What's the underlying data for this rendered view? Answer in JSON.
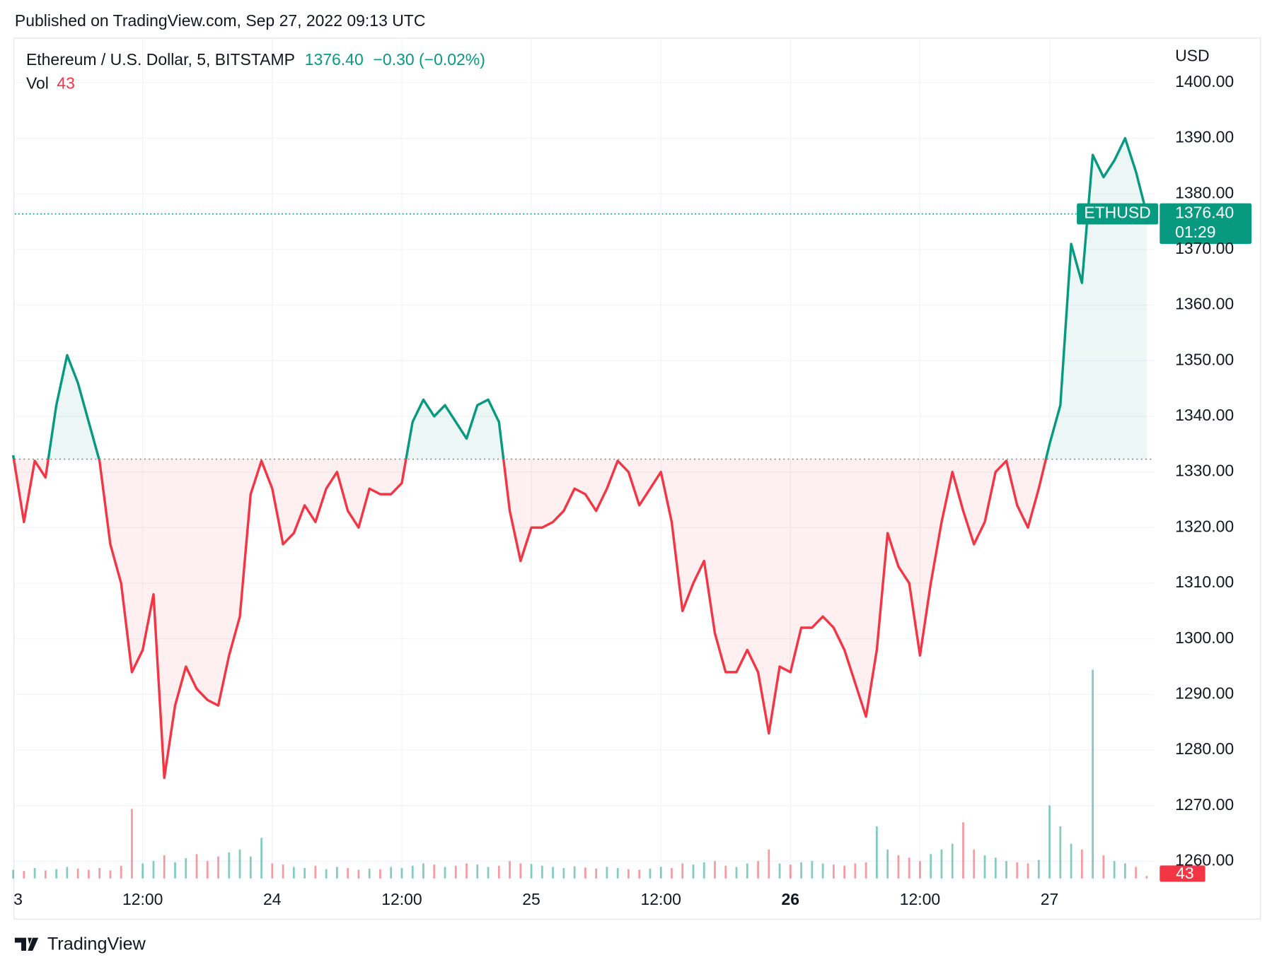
{
  "header": {
    "published": "Published on TradingView.com, Sep 27, 2022 09:13 UTC"
  },
  "chart_data": {
    "type": "line",
    "symbol": "Ethereum / U.S. Dollar, 5, BITSTAMP",
    "last": "1376.40",
    "change": "−0.30 (−0.02%)",
    "currency": "USD",
    "last_price": 1376.4,
    "last_price_label": "1376.40",
    "countdown": "01:29",
    "baseline": 1332.3,
    "categories": [
      "3",
      null,
      null,
      null,
      null,
      null,
      null,
      null,
      null,
      null,
      null,
      null,
      "12:00",
      null,
      null,
      null,
      null,
      null,
      null,
      null,
      null,
      null,
      null,
      null,
      "24",
      null,
      null,
      null,
      null,
      null,
      null,
      null,
      null,
      null,
      null,
      null,
      "12:00",
      null,
      null,
      null,
      null,
      null,
      null,
      null,
      null,
      null,
      null,
      null,
      "25",
      null,
      null,
      null,
      null,
      null,
      null,
      null,
      null,
      null,
      null,
      null,
      "12:00",
      null,
      null,
      null,
      null,
      null,
      null,
      null,
      null,
      null,
      null,
      null,
      "26",
      null,
      null,
      null,
      null,
      null,
      null,
      null,
      null,
      null,
      null,
      null,
      "12:00",
      null,
      null,
      null,
      null,
      null,
      null,
      null,
      null,
      null,
      null,
      null,
      "27",
      null,
      null,
      null,
      null,
      null,
      null,
      null,
      null,
      null
    ],
    "bold_category": "26",
    "series": [
      {
        "name": "ETHUSD",
        "color_up": "#089981",
        "color_down": "#f23645",
        "values": [
          1333,
          1321,
          1332,
          1329,
          1342,
          1351,
          1346,
          1339,
          1332,
          1317,
          1310,
          1294,
          1298,
          1308,
          1275,
          1288,
          1295,
          1291,
          1289,
          1288,
          1297,
          1304,
          1326,
          1332,
          1327,
          1317,
          1319,
          1324,
          1321,
          1327,
          1330,
          1323,
          1320,
          1327,
          1326,
          1326,
          1328,
          1339,
          1343,
          1340,
          1342,
          1339,
          1336,
          1342,
          1343,
          1339,
          1323,
          1314,
          1320,
          1320,
          1321,
          1323,
          1327,
          1326,
          1323,
          1327,
          1332,
          1330,
          1324,
          1327,
          1330,
          1321,
          1305,
          1310,
          1314,
          1301,
          1294,
          1294,
          1298,
          1294,
          1283,
          1295,
          1294,
          1302,
          1302,
          1304,
          1302,
          1298,
          1292,
          1286,
          1298,
          1319,
          1313,
          1310,
          1297,
          1310,
          1321,
          1330,
          1323,
          1317,
          1321,
          1330,
          1332,
          1324,
          1320,
          1327,
          1335,
          1342,
          1371,
          1364,
          1387,
          1383,
          1386,
          1390,
          1384,
          1376.4
        ]
      },
      {
        "name": "Vol",
        "values": [
          150,
          130,
          180,
          140,
          160,
          200,
          170,
          150,
          180,
          140,
          220,
          1200,
          260,
          300,
          400,
          280,
          350,
          420,
          300,
          380,
          450,
          500,
          380,
          700,
          260,
          240,
          200,
          180,
          220,
          160,
          200,
          180,
          150,
          170,
          160,
          200,
          180,
          220,
          260,
          240,
          200,
          220,
          260,
          240,
          200,
          220,
          300,
          260,
          250,
          220,
          200,
          180,
          210,
          190,
          170,
          200,
          180,
          160,
          150,
          170,
          200,
          180,
          260,
          240,
          280,
          300,
          220,
          200,
          260,
          300,
          500,
          260,
          240,
          280,
          300,
          260,
          240,
          220,
          260,
          280,
          900,
          500,
          400,
          360,
          300,
          420,
          500,
          600,
          970,
          500,
          400,
          360,
          300,
          280,
          260,
          320,
          1260,
          900,
          600,
          500,
          3600,
          400,
          300,
          260,
          200,
          43
        ]
      }
    ],
    "ylim": [
      1256.9,
      1408.0
    ],
    "yticks": [
      {
        "value": 1260,
        "label": "1260.00"
      },
      {
        "value": 1270,
        "label": "1270.00"
      },
      {
        "value": 1280,
        "label": "1280.00"
      },
      {
        "value": 1290,
        "label": "1290.00"
      },
      {
        "value": 1300,
        "label": "1300.00"
      },
      {
        "value": 1310,
        "label": "1310.00"
      },
      {
        "value": 1320,
        "label": "1320.00"
      },
      {
        "value": 1330,
        "label": "1330.00"
      },
      {
        "value": 1340,
        "label": "1340.00"
      },
      {
        "value": 1350,
        "label": "1350.00"
      },
      {
        "value": 1360,
        "label": "1360.00"
      },
      {
        "value": 1370,
        "label": "1370.00"
      },
      {
        "value": 1380,
        "label": "1380.00"
      },
      {
        "value": 1390,
        "label": "1390.00"
      },
      {
        "value": 1400,
        "label": "1400.00"
      }
    ],
    "grid": true
  },
  "footer": {
    "brand": "TradingView"
  }
}
